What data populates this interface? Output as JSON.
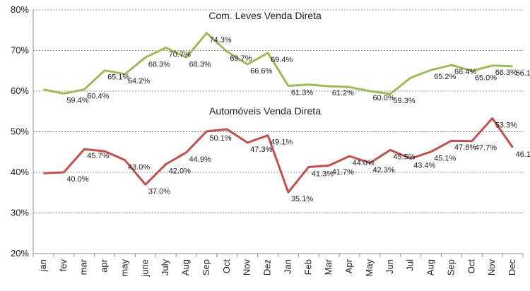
{
  "chart_data": {
    "type": "line",
    "categories": [
      "jan",
      "fev",
      "mar",
      "apr",
      "may",
      "june",
      "July",
      "Aug",
      "Sep",
      "Oct",
      "Nov",
      "Dez",
      "Jan",
      "Feb",
      "Mar",
      "Apr",
      "May",
      "Jun",
      "Jul",
      "Aug",
      "Sep",
      "Oct",
      "Nov",
      "Dec"
    ],
    "ylim": [
      20,
      80
    ],
    "yticks": [
      "20%",
      "30%",
      "40%",
      "50%",
      "60%",
      "70%",
      "80%"
    ],
    "grid": true,
    "series": [
      {
        "name": "Com. Leves Venda Direta",
        "color": "#9bbb59",
        "values": [
          60.4,
          59.4,
          60.4,
          65.1,
          64.2,
          68.3,
          70.7,
          68.3,
          74.3,
          69.7,
          66.6,
          69.4,
          61.3,
          61.6,
          61.2,
          61.0,
          60.0,
          59.3,
          63.3,
          65.2,
          66.4,
          65.0,
          66.3,
          66.1
        ],
        "labels": [
          "",
          "59.4%",
          "60.4%",
          "65.1%",
          "64.2%",
          "68.3%",
          "70.7%",
          "68.3%",
          "74.3%",
          "69.7%",
          "66.6%",
          "69.4%",
          "61.3%",
          "",
          "61.2%",
          "",
          "60.0%",
          "59.3%",
          "",
          "65.2%",
          "66.4%",
          "65.0%",
          "66.3%",
          "66.1%"
        ]
      },
      {
        "name": "Automóveis Venda Direta",
        "color": "#c0504d",
        "values": [
          39.8,
          40.0,
          45.7,
          45.2,
          43.0,
          37.0,
          42.0,
          44.9,
          50.1,
          50.6,
          47.3,
          49.1,
          35.1,
          41.3,
          41.7,
          44.0,
          42.3,
          45.5,
          43.4,
          45.1,
          47.8,
          47.7,
          53.3,
          46.1
        ],
        "labels": [
          "",
          "40.0%",
          "45.7%",
          "",
          "43.0%",
          "37.0%",
          "42.0%",
          "44.9%",
          "50.1%",
          "",
          "47.3%",
          "49.1%",
          "35.1%",
          "41.3%",
          "41.7%",
          "44.0%",
          "42.3%",
          "45.5%",
          "43.4%",
          "45.1%",
          "47.8%",
          "47.7%",
          "53.3%",
          "46.1%"
        ]
      }
    ]
  }
}
